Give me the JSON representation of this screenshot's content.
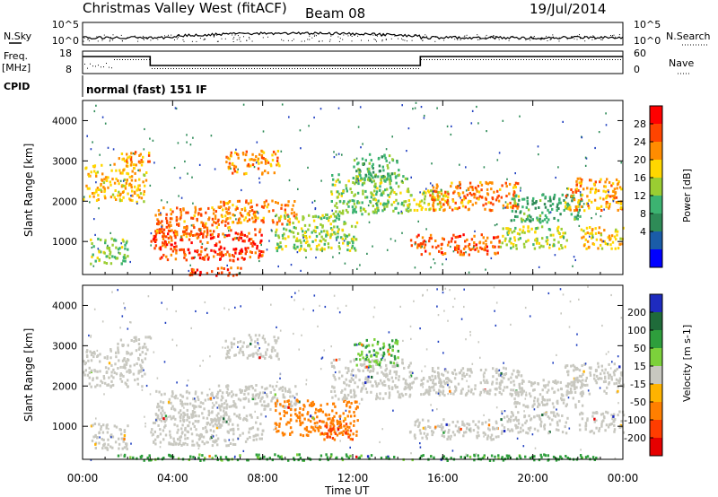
{
  "header": {
    "station": "Christmas Valley West (fitACF)",
    "beam": "Beam 08",
    "date": "19/Jul/2014"
  },
  "side_labels": {
    "nsky": "N.Sky",
    "nsearch": "N.Search",
    "freq": "Freq.",
    "freq_unit": "[MHz]",
    "nave": "Nave",
    "cpid": "CPID"
  },
  "cpid_text": "normal (fast) 151 IF",
  "noise_ticks": {
    "left": [
      "10^5",
      "10^0"
    ],
    "right": [
      "10^5",
      "10^0"
    ]
  },
  "freq_ticks": {
    "left": [
      "18",
      "8"
    ],
    "right": [
      "60",
      "0"
    ]
  },
  "colorbar_power": {
    "label": "Power [dB]",
    "ticks": [
      "28",
      "24",
      "20",
      "16",
      "12",
      "8",
      "4"
    ],
    "colors": [
      "#ff0000",
      "#ff4400",
      "#ff8c00",
      "#ffd700",
      "#9acd32",
      "#3cb371",
      "#2e8b57",
      "#1a5ca8",
      "#0000ff"
    ]
  },
  "colorbar_velocity": {
    "label": "Velocity [m s-1]",
    "ticks": [
      "200",
      "100",
      "50",
      "15",
      "-15",
      "-50",
      "-100",
      "-200"
    ],
    "colors": [
      "#1e2bbf",
      "#1f6b3a",
      "#2e9e3c",
      "#7cd13b",
      "#c8c8c0",
      "#ffb300",
      "#ff7f00",
      "#ff3d00",
      "#e60000"
    ]
  },
  "chart_data": [
    {
      "type": "heatmap",
      "name": "power",
      "ylabel": "Slant Range [km]",
      "ylim": [
        180,
        4500
      ],
      "y_ticks": [
        1000,
        2000,
        3000,
        4000
      ],
      "xlim": [
        0,
        24
      ],
      "x_ticks": [
        "00:00",
        "04:00",
        "08:00",
        "12:00",
        "16:00",
        "20:00",
        "00:00"
      ],
      "bands": [
        {
          "t0": 0.0,
          "t1": 2.8,
          "r0": 2000,
          "r1": 2950,
          "level": 20
        },
        {
          "t0": 1.5,
          "t1": 3.0,
          "r0": 2900,
          "r1": 3250,
          "level": 22
        },
        {
          "t0": 0.3,
          "t1": 2.0,
          "r0": 450,
          "r1": 1100,
          "level": 14
        },
        {
          "t0": 3.0,
          "t1": 8.0,
          "r0": 550,
          "r1": 1350,
          "level": 27
        },
        {
          "t0": 3.2,
          "t1": 6.5,
          "r0": 1150,
          "r1": 1900,
          "level": 24
        },
        {
          "t0": 6.0,
          "t1": 9.5,
          "r0": 1450,
          "r1": 2050,
          "level": 23
        },
        {
          "t0": 6.3,
          "t1": 8.7,
          "r0": 2700,
          "r1": 3300,
          "level": 22
        },
        {
          "t0": 8.5,
          "t1": 12.2,
          "r0": 800,
          "r1": 1700,
          "level": 15
        },
        {
          "t0": 11.0,
          "t1": 14.6,
          "r0": 1700,
          "r1": 2700,
          "level": 14
        },
        {
          "t0": 12.0,
          "t1": 14.0,
          "r0": 2500,
          "r1": 3200,
          "level": 11
        },
        {
          "t0": 14.3,
          "t1": 16.2,
          "r0": 1800,
          "r1": 2300,
          "level": 17
        },
        {
          "t0": 15.4,
          "t1": 19.5,
          "r0": 1800,
          "r1": 2500,
          "level": 23
        },
        {
          "t0": 14.5,
          "t1": 18.5,
          "r0": 700,
          "r1": 1200,
          "level": 25
        },
        {
          "t0": 18.5,
          "t1": 21.5,
          "r0": 850,
          "r1": 1400,
          "level": 16
        },
        {
          "t0": 19.0,
          "t1": 22.2,
          "r0": 1500,
          "r1": 2200,
          "level": 10
        },
        {
          "t0": 21.4,
          "t1": 24.0,
          "r0": 1800,
          "r1": 2600,
          "level": 22
        },
        {
          "t0": 22.0,
          "t1": 24.0,
          "r0": 850,
          "r1": 1400,
          "level": 20
        },
        {
          "t0": 4.5,
          "t1": 7.0,
          "r0": 180,
          "r1": 380,
          "level": 26
        }
      ]
    },
    {
      "type": "heatmap",
      "name": "velocity",
      "ylabel": "Slant Range [km]",
      "ylim": [
        180,
        4500
      ],
      "y_ticks": [
        1000,
        2000,
        3000,
        4000
      ],
      "xlim": [
        0,
        24
      ],
      "x_ticks": [
        "00:00",
        "04:00",
        "08:00",
        "12:00",
        "16:00",
        "20:00",
        "00:00"
      ],
      "xlabel": "Time UT",
      "bands": [
        {
          "t0": 0.0,
          "t1": 2.8,
          "r0": 2000,
          "r1": 2950,
          "vel": 0
        },
        {
          "t0": 1.5,
          "t1": 3.0,
          "r0": 2900,
          "r1": 3250,
          "vel": 5
        },
        {
          "t0": 0.3,
          "t1": 2.0,
          "r0": 450,
          "r1": 1100,
          "vel": -5
        },
        {
          "t0": 3.0,
          "t1": 8.0,
          "r0": 550,
          "r1": 1350,
          "vel": 0
        },
        {
          "t0": 3.2,
          "t1": 6.5,
          "r0": 1150,
          "r1": 1900,
          "vel": 0
        },
        {
          "t0": 6.0,
          "t1": 9.5,
          "r0": 1450,
          "r1": 2050,
          "vel": 0
        },
        {
          "t0": 6.3,
          "t1": 8.7,
          "r0": 2700,
          "r1": 3300,
          "vel": 0
        },
        {
          "t0": 8.5,
          "t1": 12.2,
          "r0": 800,
          "r1": 1700,
          "vel": -45
        },
        {
          "t0": 10.5,
          "t1": 12.0,
          "r0": 700,
          "r1": 1200,
          "vel": -80
        },
        {
          "t0": 11.0,
          "t1": 14.6,
          "r0": 1700,
          "r1": 2700,
          "vel": 0
        },
        {
          "t0": 12.0,
          "t1": 14.0,
          "r0": 2500,
          "r1": 3200,
          "vel": 30
        },
        {
          "t0": 14.3,
          "t1": 16.2,
          "r0": 1800,
          "r1": 2300,
          "vel": 0
        },
        {
          "t0": 15.4,
          "t1": 19.5,
          "r0": 1800,
          "r1": 2500,
          "vel": 0
        },
        {
          "t0": 14.5,
          "t1": 18.5,
          "r0": 700,
          "r1": 1200,
          "vel": 0
        },
        {
          "t0": 18.5,
          "t1": 21.5,
          "r0": 850,
          "r1": 1400,
          "vel": 0
        },
        {
          "t0": 19.0,
          "t1": 22.2,
          "r0": 1500,
          "r1": 2200,
          "vel": 0
        },
        {
          "t0": 21.4,
          "t1": 24.0,
          "r0": 1800,
          "r1": 2600,
          "vel": 0
        },
        {
          "t0": 22.0,
          "t1": 24.0,
          "r0": 850,
          "r1": 1400,
          "vel": 0
        },
        {
          "t0": 1.0,
          "t1": 23.0,
          "r0": 180,
          "r1": 330,
          "vel": 40
        }
      ]
    }
  ]
}
